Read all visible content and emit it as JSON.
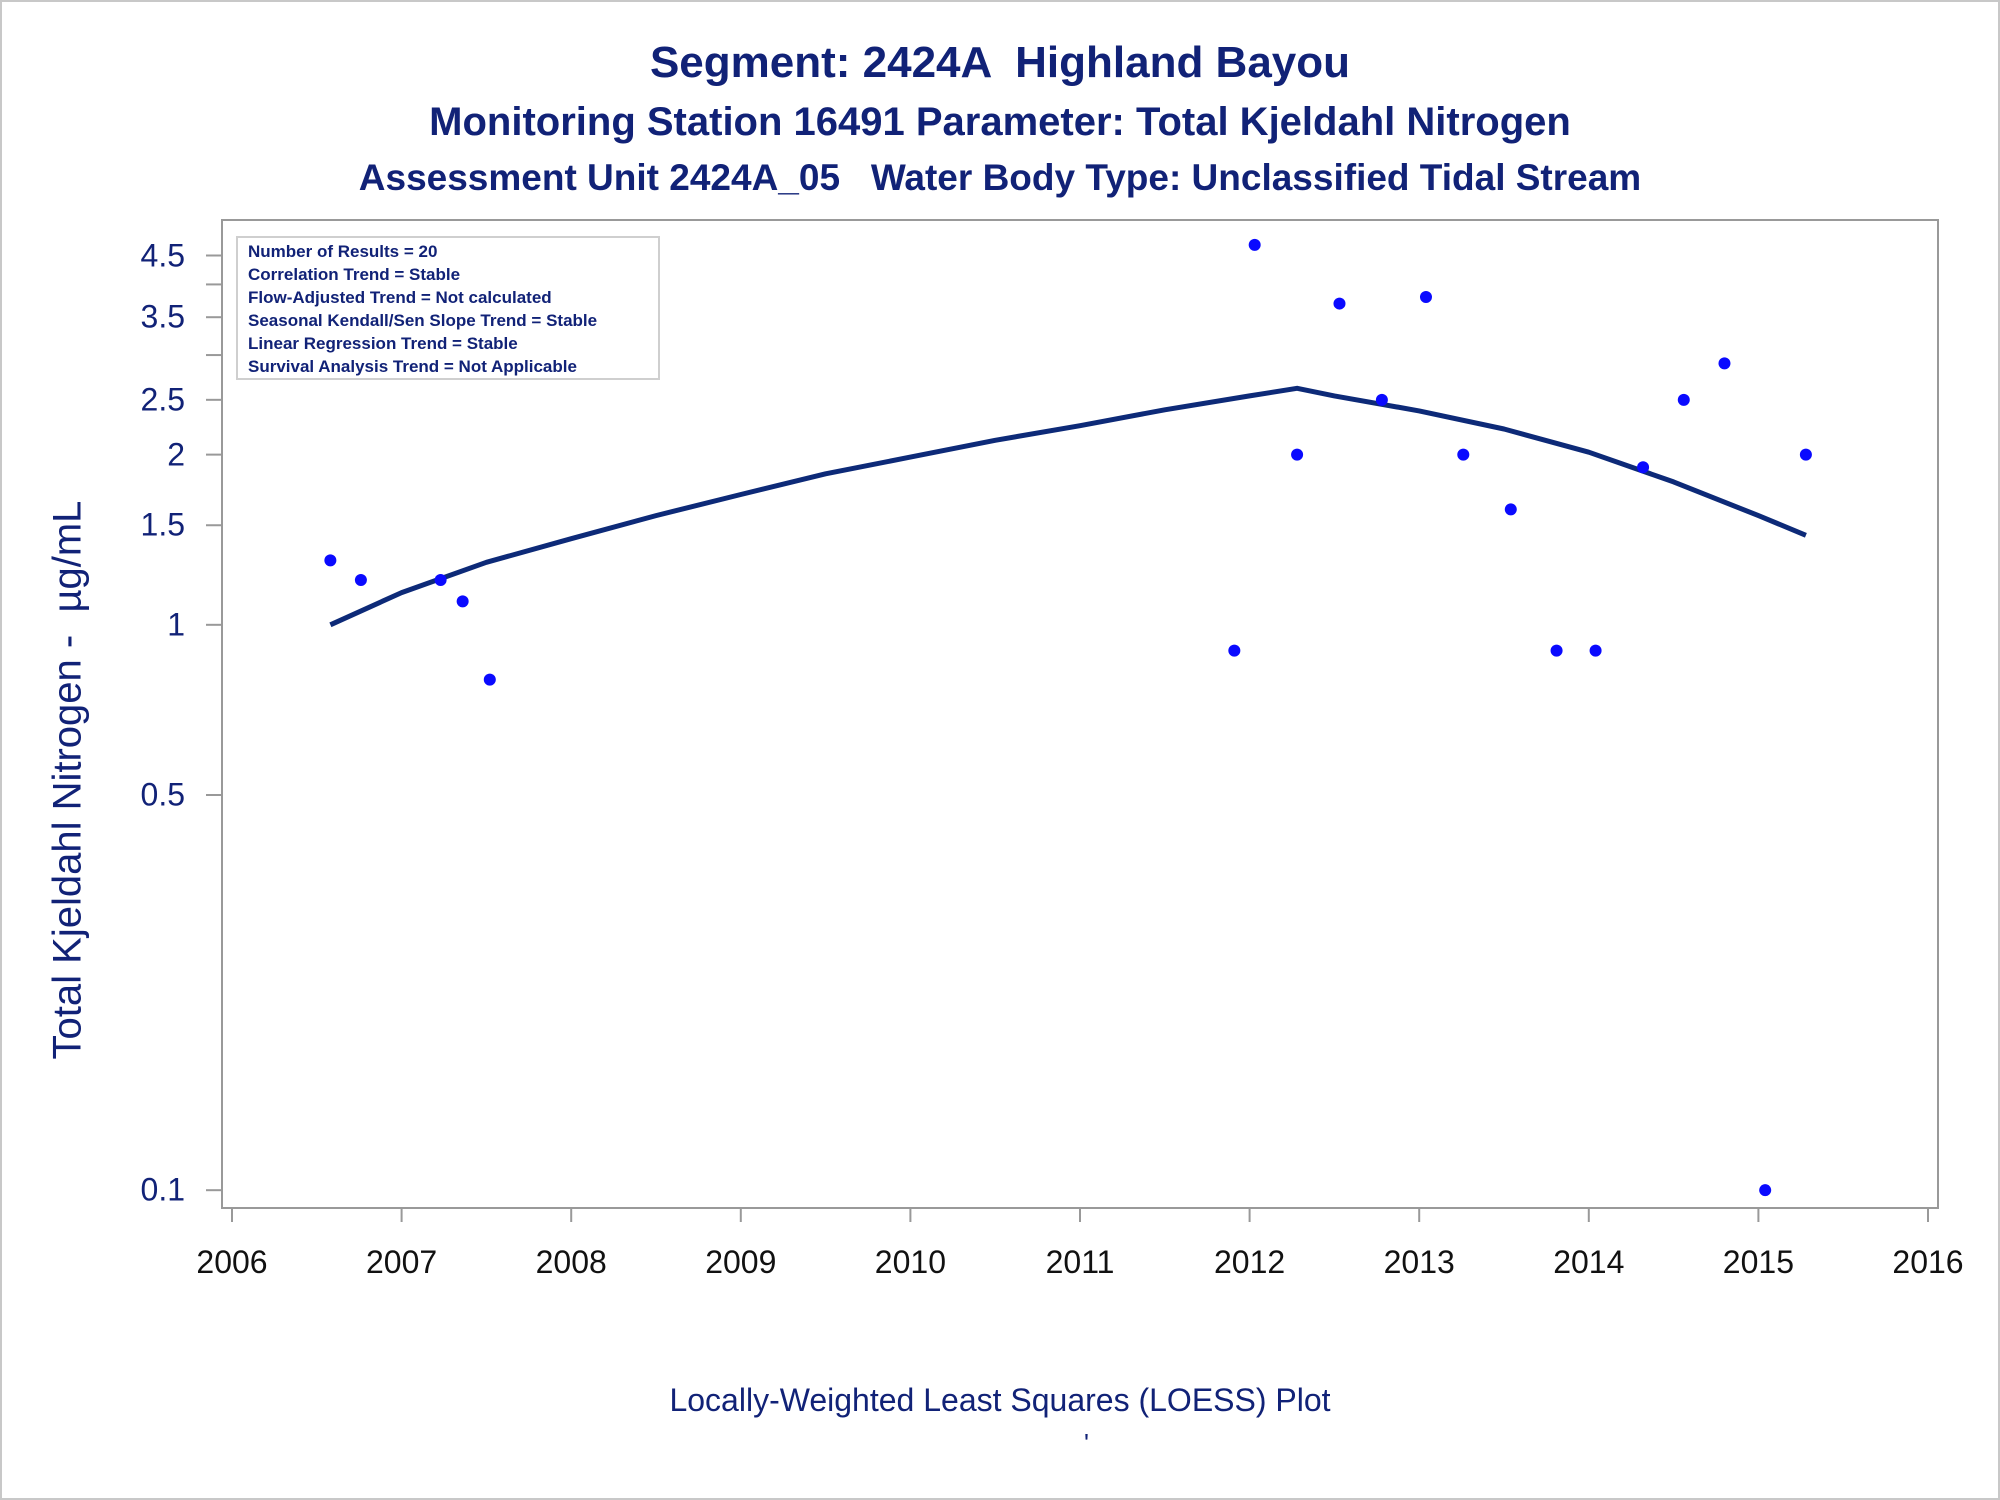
{
  "titles": {
    "line1": "Segment: 2424A  Highland Bayou",
    "line2": "Monitoring Station 16491 Parameter: Total Kjeldahl Nitrogen",
    "line3": "Assessment Unit 2424A_05   Water Body Type: Unclassified Tidal Stream"
  },
  "stats": [
    "Number of Results = 20",
    "Correlation Trend = Stable",
    "Flow-Adjusted Trend = Not calculated",
    "Seasonal Kendall/Sen Slope Trend = Stable",
    "Linear Regression Trend = Stable",
    "Survival Analysis Trend = Not Applicable"
  ],
  "footnote": "Locally-Weighted Least Squares (LOESS) Plot",
  "footnote_mark": "'",
  "colors": {
    "text": "#112277",
    "points": "#0a0aff",
    "curve": "#0d2a78",
    "axis": "#999999"
  },
  "chart_data": {
    "type": "scatter",
    "title": "Segment: 2424A  Highland Bayou",
    "xlabel": "",
    "ylabel": "Total Kjeldahl Nitrogen -  µg/mL",
    "yscale": "log",
    "xlim": [
      2006,
      2016
    ],
    "ylim": [
      0.093,
      5.2
    ],
    "xticks": [
      "2006",
      "2007",
      "2008",
      "2009",
      "2010",
      "2011",
      "2012",
      "2013",
      "2014",
      "2015",
      "2016"
    ],
    "yticks": [
      {
        "value": 0.1,
        "label": "0.1"
      },
      {
        "value": 0.5,
        "label": "0.5"
      },
      {
        "value": 1,
        "label": "1"
      },
      {
        "value": 1.5,
        "label": "1.5"
      },
      {
        "value": 2,
        "label": "2"
      },
      {
        "value": 2.5,
        "label": "2.5"
      },
      {
        "value": 3,
        "label": ""
      },
      {
        "value": 3.5,
        "label": "3.5"
      },
      {
        "value": 4,
        "label": ""
      },
      {
        "value": 4.5,
        "label": "4.5"
      }
    ],
    "grid": false,
    "points": [
      {
        "x": 2006.58,
        "y": 1.3
      },
      {
        "x": 2006.76,
        "y": 1.2
      },
      {
        "x": 2007.23,
        "y": 1.2
      },
      {
        "x": 2007.36,
        "y": 1.1
      },
      {
        "x": 2007.52,
        "y": 0.8
      },
      {
        "x": 2011.91,
        "y": 0.9
      },
      {
        "x": 2012.03,
        "y": 4.7
      },
      {
        "x": 2012.28,
        "y": 2.0
      },
      {
        "x": 2012.53,
        "y": 3.7
      },
      {
        "x": 2012.78,
        "y": 2.5
      },
      {
        "x": 2013.04,
        "y": 3.8
      },
      {
        "x": 2013.26,
        "y": 2.0
      },
      {
        "x": 2013.54,
        "y": 1.6
      },
      {
        "x": 2013.81,
        "y": 0.9
      },
      {
        "x": 2014.04,
        "y": 0.9
      },
      {
        "x": 2014.32,
        "y": 1.9
      },
      {
        "x": 2014.56,
        "y": 2.5
      },
      {
        "x": 2014.8,
        "y": 2.9
      },
      {
        "x": 2015.04,
        "y": 0.1
      },
      {
        "x": 2015.28,
        "y": 2.0
      }
    ],
    "loess": [
      {
        "x": 2006.58,
        "y": 1.0
      },
      {
        "x": 2007.0,
        "y": 1.14
      },
      {
        "x": 2007.5,
        "y": 1.29
      },
      {
        "x": 2008.0,
        "y": 1.42
      },
      {
        "x": 2008.5,
        "y": 1.56
      },
      {
        "x": 2009.0,
        "y": 1.7
      },
      {
        "x": 2009.5,
        "y": 1.85
      },
      {
        "x": 2010.0,
        "y": 1.98
      },
      {
        "x": 2010.5,
        "y": 2.12
      },
      {
        "x": 2011.0,
        "y": 2.25
      },
      {
        "x": 2011.5,
        "y": 2.4
      },
      {
        "x": 2012.0,
        "y": 2.54
      },
      {
        "x": 2012.28,
        "y": 2.62
      },
      {
        "x": 2012.5,
        "y": 2.54
      },
      {
        "x": 2013.0,
        "y": 2.39
      },
      {
        "x": 2013.5,
        "y": 2.22
      },
      {
        "x": 2014.0,
        "y": 2.02
      },
      {
        "x": 2014.5,
        "y": 1.79
      },
      {
        "x": 2015.0,
        "y": 1.56
      },
      {
        "x": 2015.28,
        "y": 1.44
      }
    ]
  }
}
